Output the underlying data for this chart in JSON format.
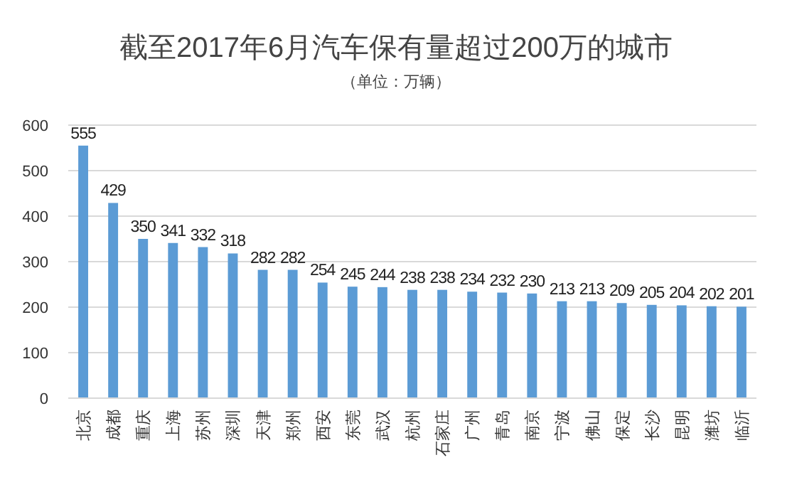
{
  "chart_data": {
    "type": "bar",
    "title": "截至2017年6月汽车保有量超过200万的城市",
    "subtitle": "（单位：万辆）",
    "categories": [
      "北京",
      "成都",
      "重庆",
      "上海",
      "苏州",
      "深圳",
      "天津",
      "郑州",
      "西安",
      "东莞",
      "武汉",
      "杭州",
      "石家庄",
      "广州",
      "青岛",
      "南京",
      "宁波",
      "佛山",
      "保定",
      "长沙",
      "昆明",
      "潍坊",
      "临沂"
    ],
    "values": [
      555,
      429,
      350,
      341,
      332,
      318,
      282,
      282,
      254,
      245,
      244,
      238,
      238,
      234,
      232,
      230,
      213,
      213,
      209,
      205,
      204,
      202,
      201
    ],
    "color": "#5b9bd5",
    "ylim": [
      0,
      600
    ],
    "yticks": [
      0,
      100,
      200,
      300,
      400,
      500,
      600
    ],
    "grid": "y",
    "data_labels": true
  }
}
